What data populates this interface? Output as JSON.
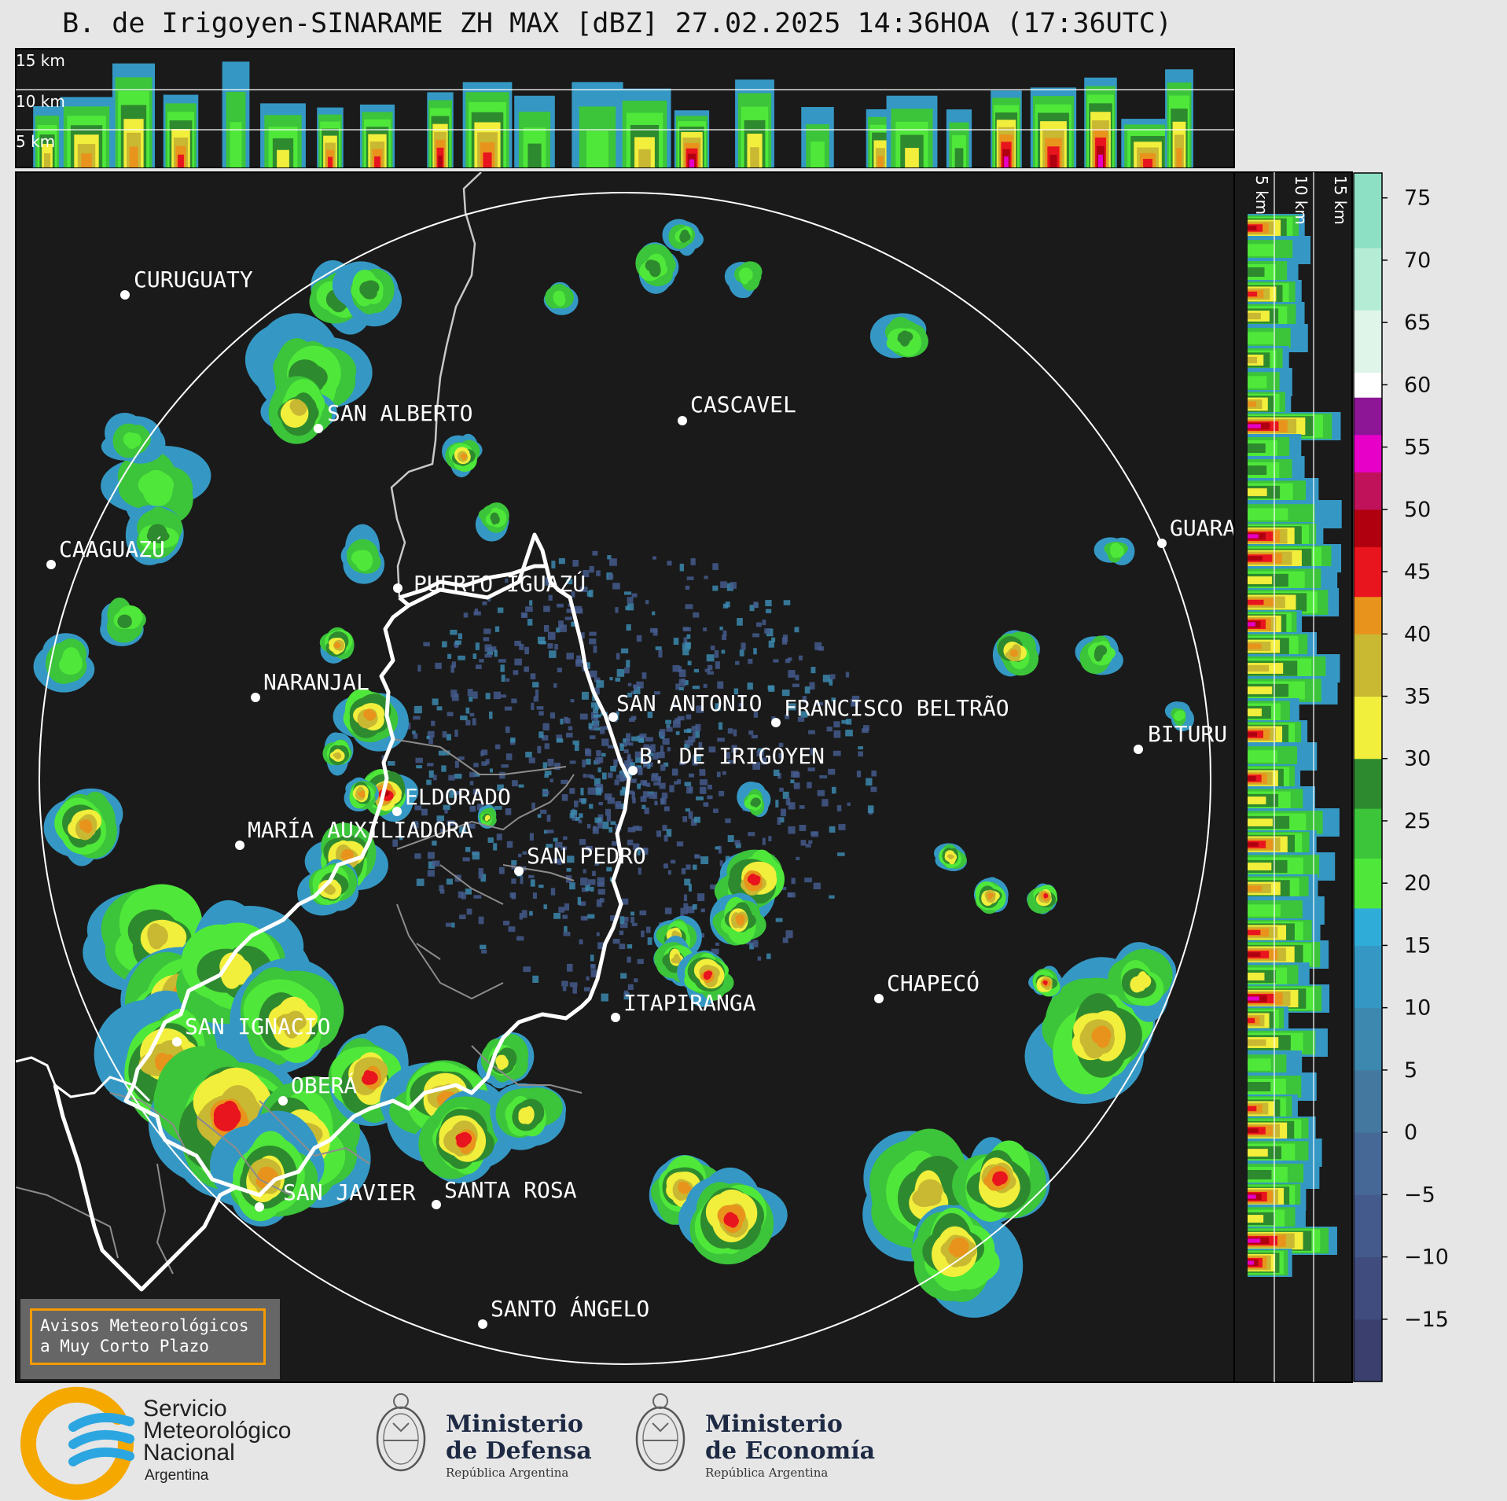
{
  "title": "B. de Irigoyen-SINARAME ZH MAX [dBZ] 27.02.2025 14:36HOA (17:36UTC)",
  "top_panel": {
    "height_labels": [
      "15 km",
      "10 km",
      "5 km"
    ]
  },
  "side_panel": {
    "height_labels": [
      "5 km",
      "10 km",
      "15 km"
    ]
  },
  "colorbar": {
    "unit": "dBZ",
    "ticks": [
      "75",
      "70",
      "65",
      "60",
      "55",
      "50",
      "45",
      "40",
      "35",
      "30",
      "25",
      "20",
      "15",
      "10",
      "5",
      "0",
      "−5",
      "−10",
      "−15"
    ],
    "tick_values": [
      75,
      70,
      65,
      60,
      55,
      50,
      45,
      40,
      35,
      30,
      25,
      20,
      15,
      10,
      5,
      0,
      -5,
      -10,
      -15
    ],
    "range": [
      -20,
      77
    ],
    "bands": [
      {
        "from": -20,
        "to": -15,
        "color": "#3a3f6e"
      },
      {
        "from": -15,
        "to": -10,
        "color": "#404c7e"
      },
      {
        "from": -10,
        "to": -5,
        "color": "#445a8c"
      },
      {
        "from": -5,
        "to": 0,
        "color": "#466896"
      },
      {
        "from": 0,
        "to": 5,
        "color": "#44789e"
      },
      {
        "from": 5,
        "to": 10,
        "color": "#3c88ae"
      },
      {
        "from": 10,
        "to": 15,
        "color": "#3598c4"
      },
      {
        "from": 15,
        "to": 18,
        "color": "#30acd8"
      },
      {
        "from": 18,
        "to": 22,
        "color": "#4fe83a"
      },
      {
        "from": 22,
        "to": 26,
        "color": "#3cc43a"
      },
      {
        "from": 26,
        "to": 30,
        "color": "#2e8a2e"
      },
      {
        "from": 30,
        "to": 35,
        "color": "#f2ee3c"
      },
      {
        "from": 35,
        "to": 40,
        "color": "#c8b832"
      },
      {
        "from": 40,
        "to": 43,
        "color": "#e8941c"
      },
      {
        "from": 43,
        "to": 47,
        "color": "#e8141e"
      },
      {
        "from": 47,
        "to": 50,
        "color": "#b00010"
      },
      {
        "from": 50,
        "to": 53,
        "color": "#c0125a"
      },
      {
        "from": 53,
        "to": 56,
        "color": "#e600c8"
      },
      {
        "from": 56,
        "to": 59,
        "color": "#8c1696"
      },
      {
        "from": 59,
        "to": 61,
        "color": "#ffffff"
      },
      {
        "from": 61,
        "to": 66,
        "color": "#dff5ea"
      },
      {
        "from": 66,
        "to": 71,
        "color": "#b4ecd6"
      },
      {
        "from": 71,
        "to": 77,
        "color": "#8ee0c4"
      }
    ]
  },
  "cities": [
    {
      "name": "CURUGUATY"
    },
    {
      "name": "SAN ALBERTO"
    },
    {
      "name": "CASCAVEL"
    },
    {
      "name": "CAAGUAZÚ"
    },
    {
      "name": "GUARA"
    },
    {
      "name": "PUERTO IGUAZÚ"
    },
    {
      "name": "NARANJAL"
    },
    {
      "name": "SAN ANTONIO"
    },
    {
      "name": "FRANCISCO BELTRÃO"
    },
    {
      "name": "B. DE IRIGOYEN"
    },
    {
      "name": "BITURU"
    },
    {
      "name": "ELDORADO"
    },
    {
      "name": "MARÍA AUXILIADORA"
    },
    {
      "name": "SAN PEDRO"
    },
    {
      "name": "CHAPECÓ"
    },
    {
      "name": "ITAPIRANGA"
    },
    {
      "name": "SAN IGNACIO"
    },
    {
      "name": "OBERÁ"
    },
    {
      "name": "SAN JAVIER"
    },
    {
      "name": "SANTA ROSA"
    },
    {
      "name": "SANTO ÁNGELO"
    }
  ],
  "notice": {
    "line1": "Avisos Meteorológicos",
    "line2": "a Muy Corto Plazo"
  },
  "logos": {
    "smn": {
      "line1": "Servicio",
      "line2": "Meteorológico",
      "line3": "Nacional",
      "line4": "Argentina"
    },
    "defensa": {
      "line1": "Ministerio",
      "line2": "de Defensa",
      "line3": "República Argentina"
    },
    "economia": {
      "line1": "Ministerio",
      "line2": "de Economía",
      "line3": "República Argentina"
    }
  },
  "colors": {
    "background": "#e6e6e6",
    "plot_bg": "#1a1a1a",
    "smn_orange": "#f5a800",
    "smn_blue": "#2ca6e0"
  }
}
